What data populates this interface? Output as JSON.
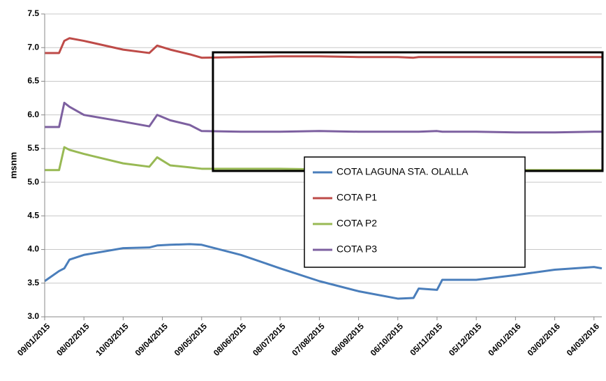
{
  "chart_data": {
    "type": "line",
    "y_label": "msnm",
    "x": [
      "09/01/2015",
      "20/01/2015",
      "24/01/2015",
      "28/01/2015",
      "08/02/2015",
      "10/03/2015",
      "30/03/2015",
      "05/04/2015",
      "15/04/2015",
      "30/04/2015",
      "09/05/2015",
      "08/06/2015",
      "08/07/2015",
      "07/08/2015",
      "06/09/2015",
      "06/10/2015",
      "18/10/2015",
      "22/10/2015",
      "05/11/2015",
      "09/11/2015",
      "05/12/2015",
      "04/01/2016",
      "03/02/2016",
      "04/03/2016",
      "10/03/2016"
    ],
    "xlim": [
      "09/01/2015",
      "10/03/2016"
    ],
    "xticks": [
      "09/01/2015",
      "08/02/2015",
      "10/03/2015",
      "09/04/2015",
      "09/05/2015",
      "08/06/2015",
      "08/07/2015",
      "07/08/2015",
      "06/09/2015",
      "06/10/2015",
      "05/11/2015",
      "05/12/2015",
      "04/01/2016",
      "03/02/2016",
      "04/03/2016"
    ],
    "ylim": [
      3,
      7.5
    ],
    "yticks": [
      {
        "value": 3,
        "label": "3.0"
      },
      3.5,
      {
        "value": 4,
        "label": "4.0"
      },
      4.5,
      {
        "value": 5,
        "label": "5.0"
      },
      5.5,
      {
        "value": 6,
        "label": "6.0"
      },
      6.5,
      {
        "value": 7,
        "label": "7.0"
      },
      7.5
    ],
    "grid": true,
    "series": [
      {
        "name": "COTA LAGUNA STA. OLALLA",
        "color": "#4a7ebb",
        "values": [
          3.53,
          3.68,
          3.72,
          3.85,
          3.92,
          4.02,
          4.03,
          4.06,
          4.07,
          4.08,
          4.07,
          3.92,
          3.72,
          3.53,
          3.38,
          3.27,
          3.28,
          3.42,
          3.4,
          3.55,
          3.55,
          3.62,
          3.7,
          3.74,
          3.72
        ]
      },
      {
        "name": "COTA P1",
        "color": "#be4b48",
        "values": [
          6.92,
          6.92,
          7.1,
          7.14,
          7.1,
          6.97,
          6.92,
          7.03,
          6.97,
          6.9,
          6.85,
          6.86,
          6.87,
          6.87,
          6.86,
          6.86,
          6.85,
          6.86,
          6.86,
          6.86,
          6.86,
          6.86,
          6.86,
          6.86,
          6.86
        ]
      },
      {
        "name": "COTA P2",
        "color": "#98b954",
        "values": [
          5.18,
          5.18,
          5.52,
          5.48,
          5.42,
          5.28,
          5.23,
          5.37,
          5.25,
          5.22,
          5.2,
          5.2,
          5.2,
          5.19,
          5.18,
          5.18,
          5.18,
          5.18,
          5.18,
          5.19,
          5.18,
          5.18,
          5.18,
          5.18,
          5.18
        ]
      },
      {
        "name": "COTA P3",
        "color": "#7d60a0",
        "values": [
          5.82,
          5.82,
          6.18,
          6.12,
          6,
          5.9,
          5.83,
          6,
          5.92,
          5.85,
          5.76,
          5.75,
          5.75,
          5.76,
          5.75,
          5.75,
          5.75,
          5.75,
          5.76,
          5.75,
          5.75,
          5.74,
          5.74,
          5.75,
          5.75
        ]
      }
    ]
  }
}
